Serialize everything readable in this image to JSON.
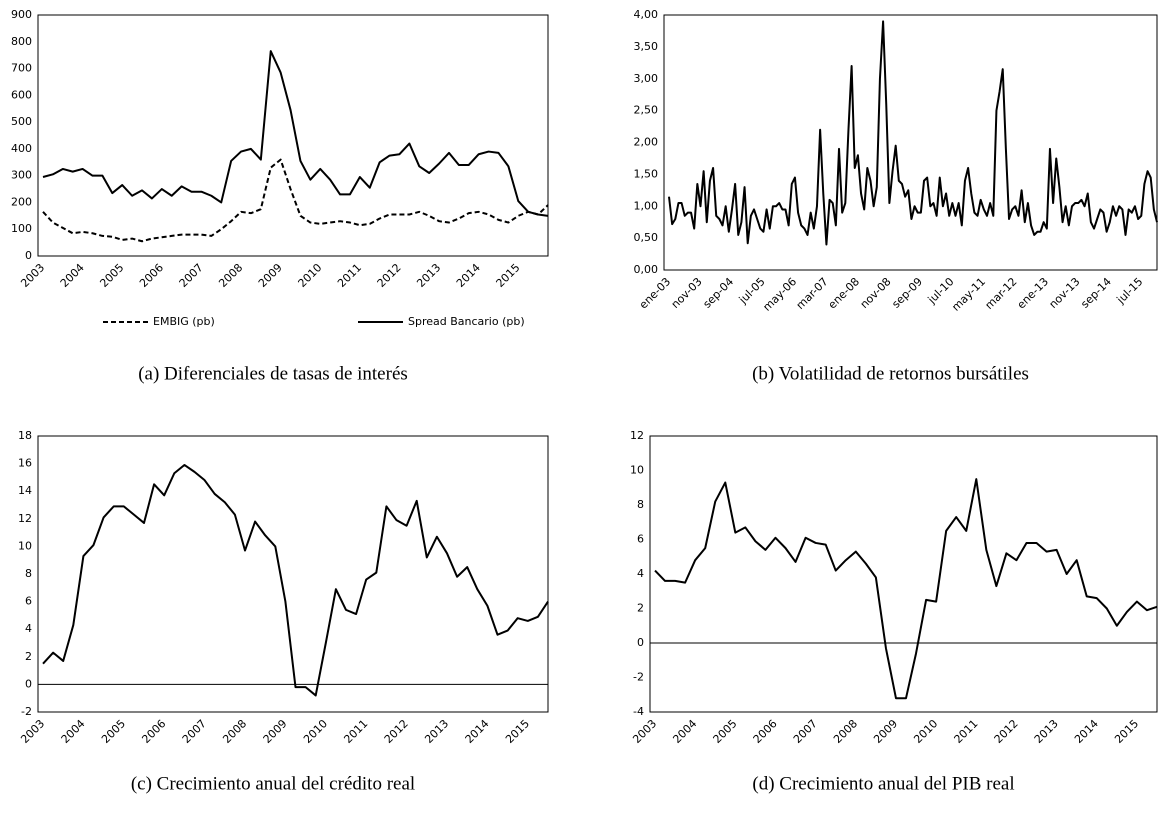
{
  "chart_data": [
    {
      "type": "line",
      "caption": "(a) Diferenciales de tasas de interés",
      "categories": [
        "2003",
        null,
        null,
        null,
        "2004",
        null,
        null,
        null,
        "2005",
        null,
        null,
        null,
        "2006",
        null,
        null,
        null,
        "2007",
        null,
        null,
        null,
        "2008",
        null,
        null,
        null,
        "2009",
        null,
        null,
        null,
        "2010",
        null,
        null,
        null,
        "2011",
        null,
        null,
        null,
        "2012",
        null,
        null,
        null,
        "2013",
        null,
        null,
        null,
        "2014",
        null,
        null,
        null,
        "2015",
        null,
        null,
        null
      ],
      "series": [
        {
          "name": "EMBIG (pb)",
          "color": "#000000",
          "style": "dashed",
          "values": [
            165,
            125,
            105,
            85,
            90,
            85,
            75,
            72,
            60,
            65,
            55,
            65,
            70,
            75,
            80,
            80,
            80,
            75,
            100,
            130,
            165,
            160,
            175,
            330,
            360,
            250,
            150,
            125,
            120,
            125,
            130,
            125,
            115,
            120,
            140,
            155,
            155,
            155,
            165,
            150,
            130,
            125,
            140,
            160,
            165,
            155,
            135,
            125,
            150,
            165,
            155,
            190
          ]
        },
        {
          "name": "Spread Bancario (pb)",
          "color": "#000000",
          "style": "solid",
          "values": [
            295,
            305,
            325,
            315,
            325,
            300,
            300,
            235,
            265,
            225,
            245,
            215,
            250,
            225,
            260,
            240,
            240,
            225,
            200,
            355,
            390,
            400,
            360,
            765,
            685,
            545,
            355,
            285,
            325,
            285,
            230,
            230,
            295,
            255,
            350,
            375,
            380,
            420,
            335,
            310,
            345,
            385,
            340,
            340,
            380,
            390,
            385,
            335,
            205,
            165,
            155,
            150
          ]
        }
      ],
      "ylim": [
        0,
        900
      ],
      "yticks": [
        0,
        100,
        200,
        300,
        400,
        500,
        600,
        700,
        800,
        900
      ],
      "legend": "bottom"
    },
    {
      "type": "line",
      "caption": "(b) Volatilidad de retornos bursátiles",
      "categories": [
        "ene-03",
        null,
        null,
        null,
        null,
        null,
        null,
        null,
        null,
        null,
        "nov-03",
        null,
        null,
        null,
        null,
        null,
        null,
        null,
        null,
        null,
        "sep-04",
        null,
        null,
        null,
        null,
        null,
        null,
        null,
        null,
        null,
        "jul-05",
        null,
        null,
        null,
        null,
        null,
        null,
        null,
        null,
        null,
        "may-06",
        null,
        null,
        null,
        null,
        null,
        null,
        null,
        null,
        null,
        "mar-07",
        null,
        null,
        null,
        null,
        null,
        null,
        null,
        null,
        null,
        "ene-08",
        null,
        null,
        null,
        null,
        null,
        null,
        null,
        null,
        null,
        "nov-08",
        null,
        null,
        null,
        null,
        null,
        null,
        null,
        null,
        null,
        "sep-09",
        null,
        null,
        null,
        null,
        null,
        null,
        null,
        null,
        null,
        "jul-10",
        null,
        null,
        null,
        null,
        null,
        null,
        null,
        null,
        null,
        "may-11",
        null,
        null,
        null,
        null,
        null,
        null,
        null,
        null,
        null,
        "mar-12",
        null,
        null,
        null,
        null,
        null,
        null,
        null,
        null,
        null,
        "ene-13",
        null,
        null,
        null,
        null,
        null,
        null,
        null,
        null,
        null,
        "nov-13",
        null,
        null,
        null,
        null,
        null,
        null,
        null,
        null,
        null,
        "sep-14",
        null,
        null,
        null,
        null,
        null,
        null,
        null,
        null,
        null,
        "jul-15",
        null,
        null,
        null,
        null,
        null
      ],
      "color": "#000000",
      "values": [
        1.15,
        0.72,
        0.8,
        1.05,
        1.05,
        0.85,
        0.9,
        0.9,
        0.65,
        1.35,
        1.0,
        1.55,
        0.75,
        1.4,
        1.6,
        0.85,
        0.8,
        0.7,
        1.0,
        0.6,
        0.95,
        1.35,
        0.55,
        0.75,
        1.3,
        0.42,
        0.85,
        0.95,
        0.8,
        0.65,
        0.6,
        0.95,
        0.65,
        1.0,
        1.0,
        1.05,
        0.95,
        0.95,
        0.7,
        1.35,
        1.45,
        0.9,
        0.7,
        0.65,
        0.55,
        0.9,
        0.65,
        1.0,
        2.2,
        1.2,
        0.4,
        1.1,
        1.05,
        0.7,
        1.9,
        0.9,
        1.05,
        2.2,
        3.2,
        1.6,
        1.8,
        1.2,
        0.95,
        1.6,
        1.4,
        1.0,
        1.3,
        3.0,
        3.9,
        2.6,
        1.05,
        1.55,
        1.95,
        1.4,
        1.35,
        1.15,
        1.25,
        0.8,
        1.0,
        0.9,
        0.9,
        1.4,
        1.45,
        1.0,
        1.05,
        0.85,
        1.45,
        1.0,
        1.2,
        0.85,
        1.05,
        0.85,
        1.05,
        0.7,
        1.4,
        1.6,
        1.2,
        0.9,
        0.85,
        1.1,
        0.95,
        0.85,
        1.05,
        0.85,
        2.5,
        2.8,
        3.15,
        1.9,
        0.8,
        0.95,
        1.0,
        0.85,
        1.25,
        0.75,
        1.05,
        0.7,
        0.55,
        0.6,
        0.6,
        0.75,
        0.65,
        1.9,
        1.05,
        1.75,
        1.3,
        0.75,
        1.0,
        0.7,
        1.0,
        1.05,
        1.05,
        1.1,
        1.0,
        1.2,
        0.75,
        0.65,
        0.8,
        0.95,
        0.9,
        0.6,
        0.75,
        1.0,
        0.85,
        1.0,
        0.95,
        0.55,
        0.95,
        0.9,
        1.0,
        0.8,
        0.85,
        1.35,
        1.55,
        1.45,
        0.95,
        0.75
      ],
      "ylim": [
        0,
        4
      ],
      "yticks": [
        {
          "value": 0,
          "label": "0,00"
        },
        {
          "value": 0.5,
          "label": "0,50"
        },
        {
          "value": 1,
          "label": "1,00"
        },
        {
          "value": 1.5,
          "label": "1,50"
        },
        {
          "value": 2,
          "label": "2,00"
        },
        {
          "value": 2.5,
          "label": "2,50"
        },
        {
          "value": 3,
          "label": "3,00"
        },
        {
          "value": 3.5,
          "label": "3,50"
        },
        {
          "value": 4,
          "label": "4,00"
        }
      ]
    },
    {
      "type": "line",
      "caption": "(c) Crecimiento anual del crédito real",
      "categories": [
        "2003",
        null,
        null,
        null,
        "2004",
        null,
        null,
        null,
        "2005",
        null,
        null,
        null,
        "2006",
        null,
        null,
        null,
        "2007",
        null,
        null,
        null,
        "2008",
        null,
        null,
        null,
        "2009",
        null,
        null,
        null,
        "2010",
        null,
        null,
        null,
        "2011",
        null,
        null,
        null,
        "2012",
        null,
        null,
        null,
        "2013",
        null,
        null,
        null,
        "2014",
        null,
        null,
        null,
        "2015",
        null,
        null
      ],
      "color": "#000000",
      "values": [
        1.5,
        2.3,
        1.7,
        4.3,
        9.3,
        10.1,
        12.1,
        12.9,
        12.9,
        12.3,
        11.7,
        14.5,
        13.7,
        15.3,
        15.9,
        15.4,
        14.8,
        13.8,
        13.2,
        12.3,
        9.7,
        11.8,
        10.8,
        10.0,
        6.0,
        -0.2,
        -0.2,
        -0.8,
        3.0,
        6.9,
        5.4,
        5.1,
        7.6,
        8.1,
        12.9,
        11.9,
        11.5,
        13.3,
        9.2,
        10.7,
        9.5,
        7.8,
        8.5,
        6.9,
        5.7,
        3.6,
        3.9,
        4.8,
        4.6,
        4.9,
        6.0
      ],
      "ylim": [
        -2,
        18
      ],
      "yticks": [
        -2,
        0,
        2,
        4,
        6,
        8,
        10,
        12,
        14,
        16,
        18
      ],
      "zero_line": true
    },
    {
      "type": "line",
      "caption": "(d) Crecimiento anual del PIB real",
      "categories": [
        "2003",
        null,
        null,
        null,
        "2004",
        null,
        null,
        null,
        "2005",
        null,
        null,
        null,
        "2006",
        null,
        null,
        null,
        "2007",
        null,
        null,
        null,
        "2008",
        null,
        null,
        null,
        "2009",
        null,
        null,
        null,
        "2010",
        null,
        null,
        null,
        "2011",
        null,
        null,
        null,
        "2012",
        null,
        null,
        null,
        "2013",
        null,
        null,
        null,
        "2014",
        null,
        null,
        null,
        "2015",
        null,
        null
      ],
      "color": "#000000",
      "values": [
        4.2,
        3.6,
        3.6,
        3.5,
        4.8,
        5.5,
        8.2,
        9.3,
        6.4,
        6.7,
        5.9,
        5.4,
        6.1,
        5.5,
        4.7,
        6.1,
        5.8,
        5.7,
        4.2,
        4.8,
        5.3,
        4.6,
        3.8,
        -0.3,
        -3.2,
        -3.2,
        -0.6,
        2.5,
        2.4,
        6.5,
        7.3,
        6.5,
        9.5,
        5.4,
        3.3,
        5.2,
        4.8,
        5.8,
        5.8,
        5.3,
        5.4,
        4.0,
        4.8,
        2.7,
        2.6,
        2.0,
        1.0,
        1.8,
        2.4,
        1.9,
        2.1
      ],
      "ylim": [
        -4,
        12
      ],
      "yticks": [
        -4,
        -2,
        0,
        2,
        4,
        6,
        8,
        10,
        12
      ],
      "zero_line": true
    }
  ]
}
